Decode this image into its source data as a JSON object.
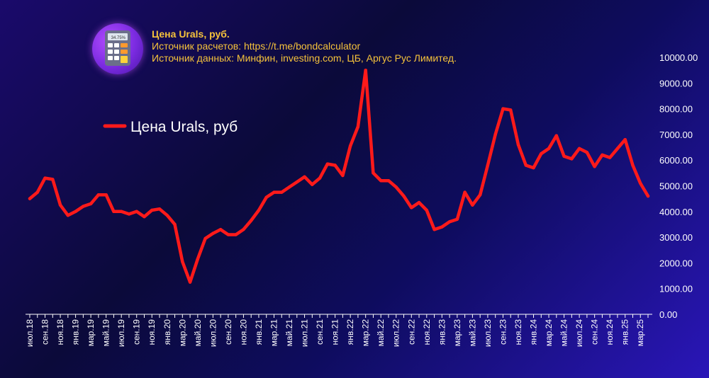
{
  "header": {
    "title": "Цена Urals, руб.",
    "source_calc": "Источник расчетов: https://t.me/bondcalculator",
    "source_data": "Источник данных: Минфин, investing.com, ЦБ, Аргус Рус Лимитед."
  },
  "logo": {
    "icon": "calculator-icon",
    "display": "34.75%"
  },
  "colors": {
    "line": "#ff1a1a",
    "text": "#ffffff",
    "title": "#f5c23b"
  },
  "chart_data": {
    "type": "line",
    "legend_position": "top-left",
    "grid": false,
    "ylim": [
      0,
      10000
    ],
    "y_ticks": [
      "0.00",
      "1000.00",
      "2000.00",
      "3000.00",
      "4000.00",
      "5000.00",
      "6000.00",
      "7000.00",
      "8000.00",
      "9000.00",
      "10000.00"
    ],
    "x": [
      "июл.18",
      "авг.18",
      "сен.18",
      "окт.18",
      "ноя.18",
      "дек.18",
      "янв.19",
      "фев.19",
      "мар.19",
      "апр.19",
      "май.19",
      "июн.19",
      "июл.19",
      "авг.19",
      "сен.19",
      "окт.19",
      "ноя.19",
      "дек.19",
      "янв.20",
      "фев.20",
      "мар.20",
      "апр.20",
      "май.20",
      "июн.20",
      "июл.20",
      "авг.20",
      "сен.20",
      "окт.20",
      "ноя.20",
      "дек.20",
      "янв.21",
      "фев.21",
      "мар.21",
      "апр.21",
      "май.21",
      "июн.21",
      "июл.21",
      "авг.21",
      "сен.21",
      "окт.21",
      "ноя.21",
      "дек.21",
      "янв.22",
      "фев.22",
      "мар.22",
      "апр.22",
      "май.22",
      "июн.22",
      "июл.22",
      "авг.22",
      "сен.22",
      "окт.22",
      "ноя.22",
      "дек.22",
      "янв.23",
      "фев.23",
      "мар.23",
      "апр.23",
      "май.23",
      "июн.23",
      "июл.23",
      "авг.23",
      "сен.23",
      "окт.23",
      "ноя.23",
      "дек.23",
      "янв.24",
      "фев.24",
      "мар.24",
      "апр.24",
      "май.24",
      "июн.24",
      "июл.24",
      "авг.24",
      "сен.24",
      "окт.24",
      "ноя.24",
      "дек.24",
      "янв.25",
      "фев.25",
      "мар.25",
      "апр.25"
    ],
    "x_tick_labels": [
      "июл.18",
      "сен.18",
      "ноя.18",
      "янв.19",
      "мар.19",
      "май.19",
      "июл.19",
      "сен.19",
      "ноя.19",
      "янв.20",
      "мар.20",
      "май.20",
      "июл.20",
      "сен.20",
      "ноя.20",
      "янв.21",
      "мар.21",
      "май.21",
      "июл.21",
      "сен.21",
      "ноя.21",
      "янв.22",
      "мар.22",
      "май.22",
      "июл.22",
      "сен.22",
      "ноя.22",
      "янв.23",
      "мар.23",
      "май.23",
      "июл.23",
      "сен.23",
      "ноя.23",
      "янв.24",
      "мар.24",
      "май.24",
      "июл.24",
      "сен.24",
      "ноя.24",
      "янв.25",
      "мар.25"
    ],
    "series": [
      {
        "name": "Цена Urals, руб",
        "values": [
          4500,
          4750,
          5300,
          5250,
          4250,
          3850,
          4000,
          4200,
          4300,
          4650,
          4650,
          4000,
          4000,
          3900,
          4000,
          3800,
          4050,
          4100,
          3850,
          3500,
          2050,
          1250,
          2150,
          2950,
          3150,
          3300,
          3100,
          3100,
          3300,
          3650,
          4050,
          4550,
          4750,
          4750,
          4950,
          5150,
          5350,
          5050,
          5300,
          5850,
          5800,
          5400,
          6550,
          7300,
          9500,
          5500,
          5200,
          5200,
          4950,
          4600,
          4150,
          4350,
          4050,
          3300,
          3400,
          3600,
          3700,
          4750,
          4250,
          4650,
          5800,
          7000,
          8000,
          7950,
          6600,
          5800,
          5700,
          6250,
          6450,
          6950,
          6150,
          6050,
          6450,
          6300,
          5750,
          6200,
          6100,
          6450,
          6800,
          5800,
          5100,
          4600
        ]
      }
    ]
  }
}
